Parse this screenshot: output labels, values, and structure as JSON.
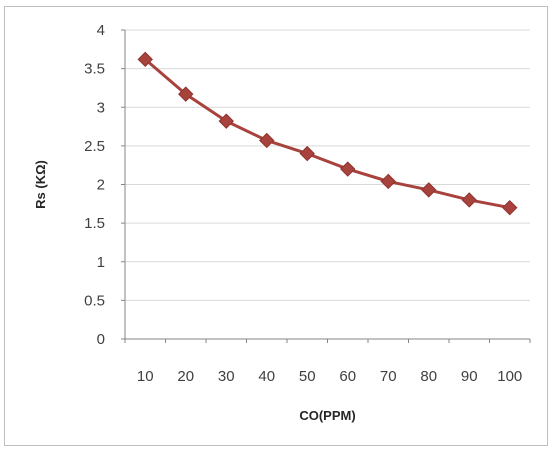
{
  "chart_data": {
    "type": "line",
    "title": "",
    "xlabel": "CO(PPM)",
    "ylabel": "Rs (KΩ)",
    "x": [
      "10",
      "20",
      "30",
      "40",
      "50",
      "60",
      "70",
      "80",
      "90",
      "100"
    ],
    "series": [
      {
        "values": [
          3.62,
          3.17,
          2.82,
          2.57,
          2.4,
          2.2,
          2.04,
          1.93,
          1.8,
          1.7
        ],
        "color": "#a8423d",
        "marker": "diamond"
      }
    ],
    "ylim": [
      0,
      4
    ],
    "yticks": [
      "0",
      "0.5",
      "1",
      "1.5",
      "2",
      "2.5",
      "3",
      "3.5",
      "4"
    ],
    "grid": "horizontal",
    "legend": "none"
  }
}
